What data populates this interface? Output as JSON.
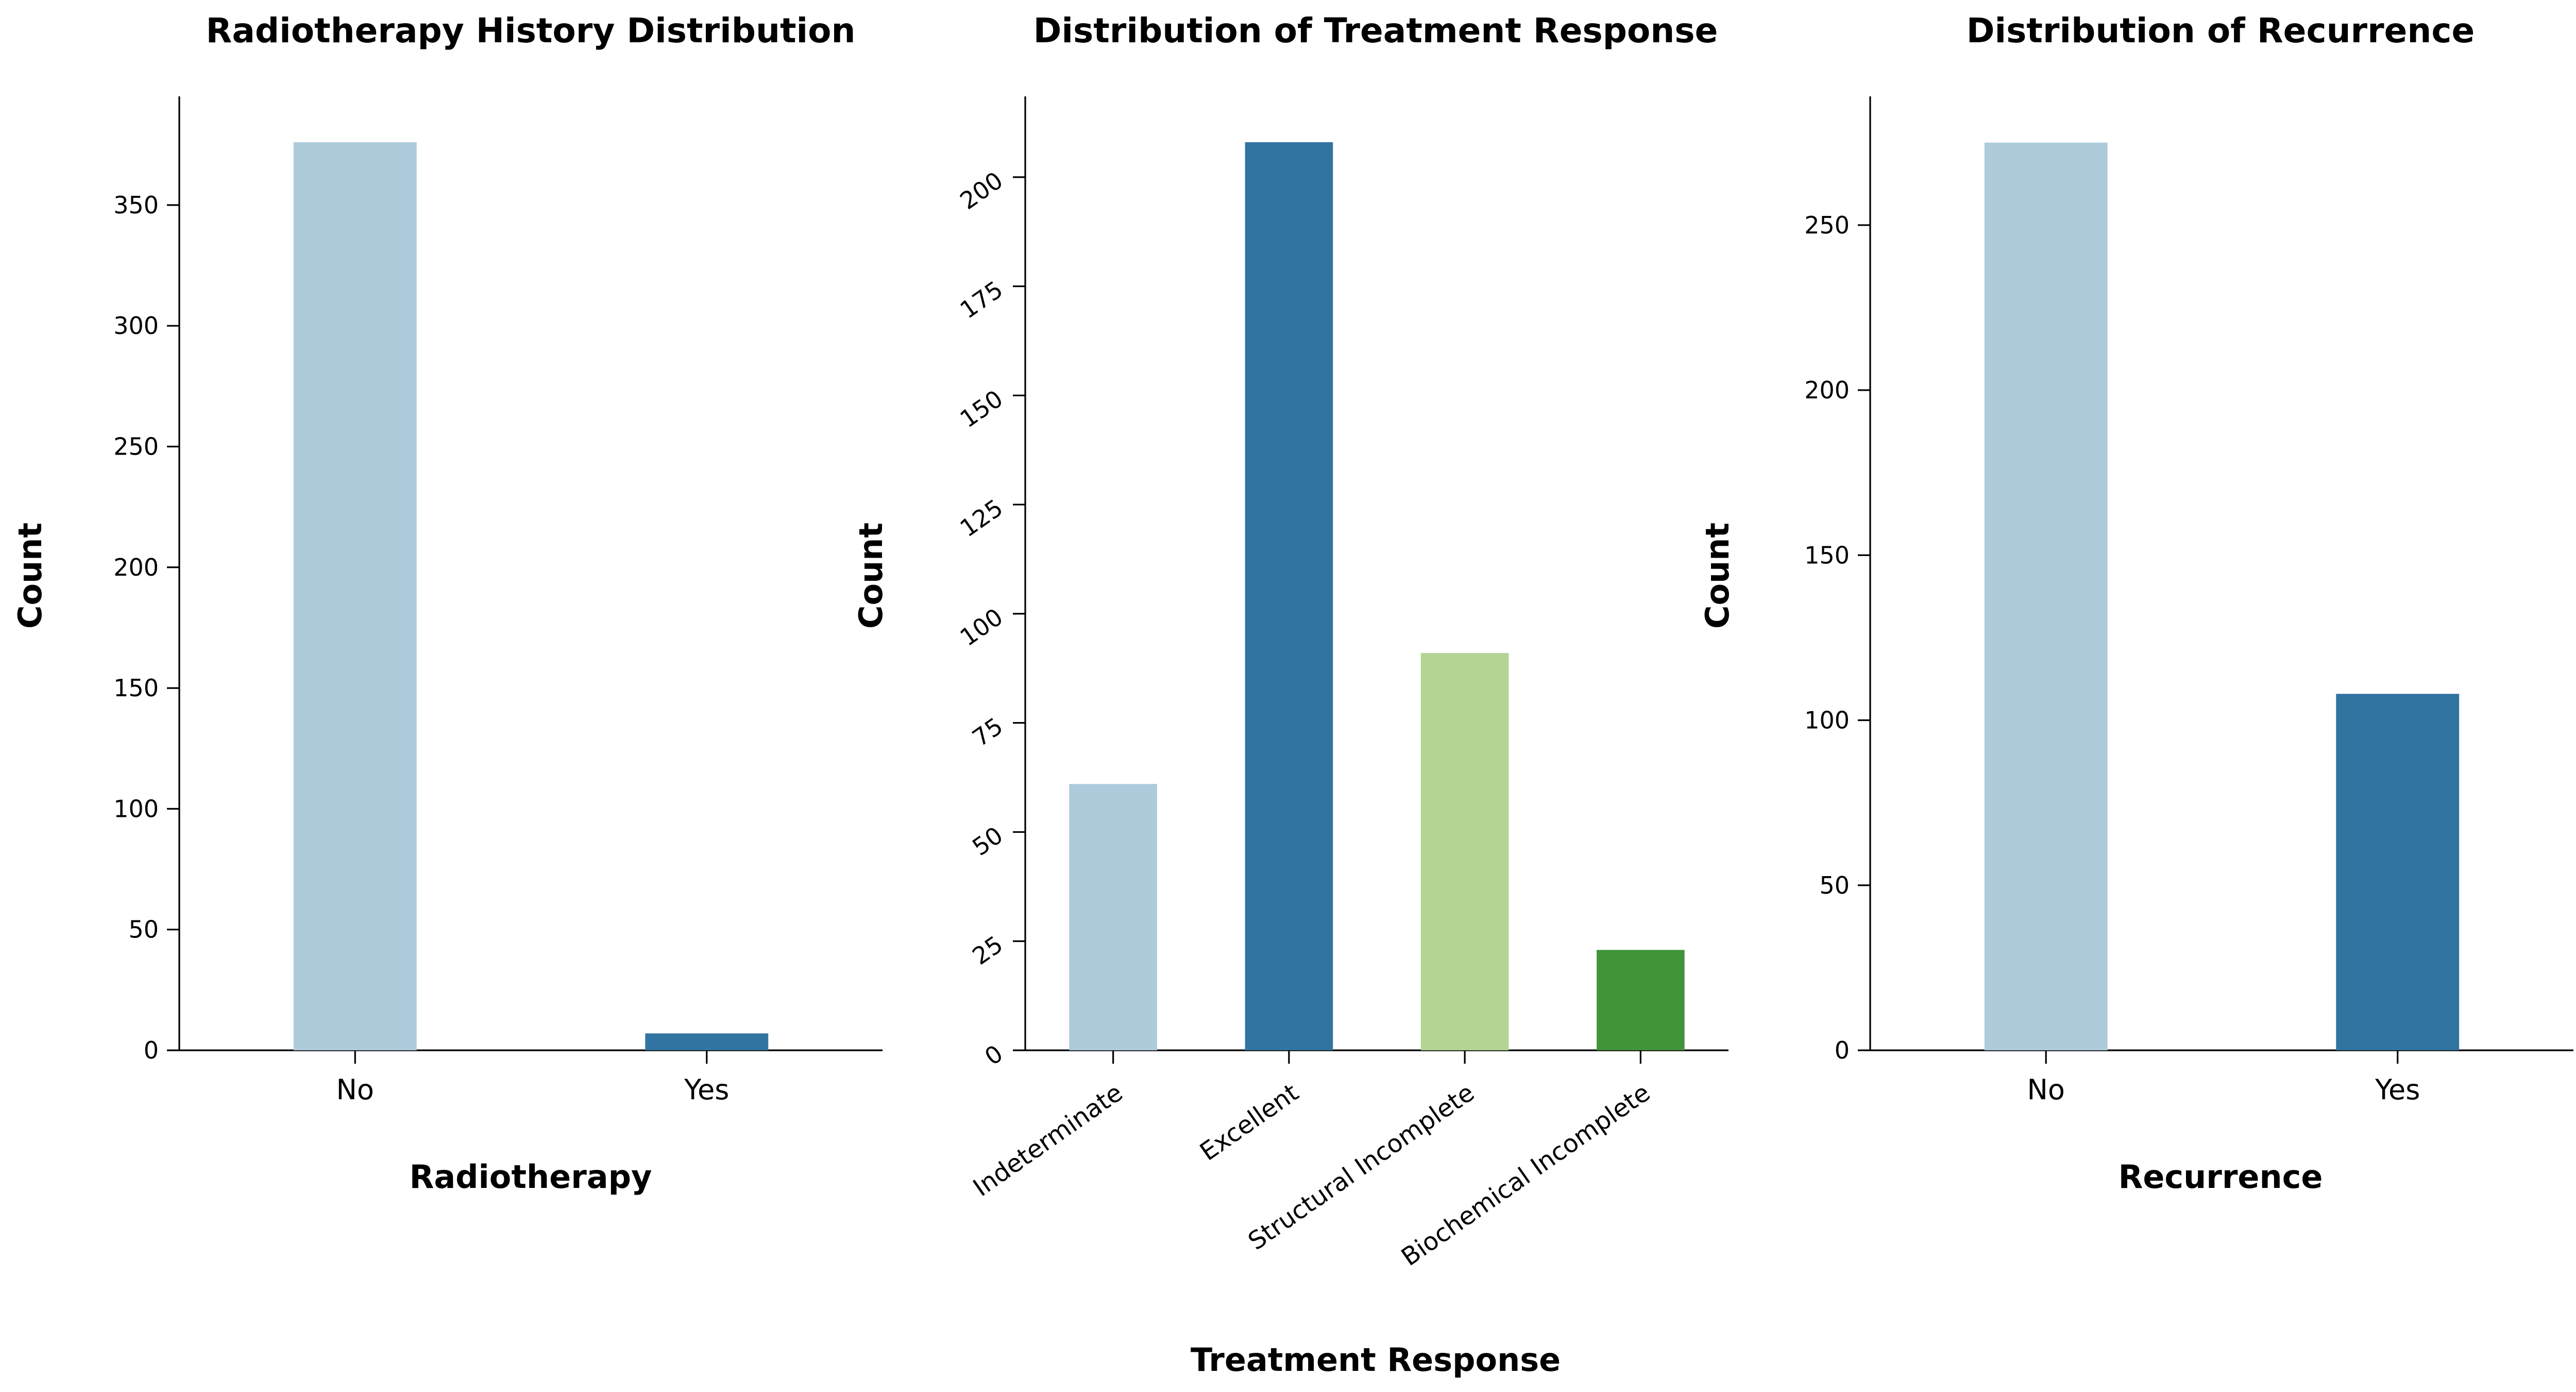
{
  "chart_data": [
    {
      "type": "bar",
      "title": "Radiotherapy History Distribution",
      "xlabel": "Radiotherapy",
      "ylabel": "Count",
      "categories": [
        "No",
        "Yes"
      ],
      "values": [
        376,
        7
      ],
      "colors": [
        "#aecbdc",
        "#3174a1"
      ],
      "ylim": [
        0,
        395
      ],
      "yticks": [
        0,
        50,
        100,
        150,
        200,
        250,
        300,
        350
      ],
      "grid": false,
      "legend": "none"
    },
    {
      "type": "bar",
      "title": "Distribution of Treatment Response",
      "xlabel": "Treatment Response",
      "ylabel": "Count",
      "categories": [
        "Indeterminate",
        "Excellent",
        "Structural Incomplete",
        "Biochemical Incomplete"
      ],
      "values": [
        61,
        208,
        91,
        23
      ],
      "colors": [
        "#aecbdc",
        "#3174a1",
        "#b3d492",
        "#40943a"
      ],
      "ylim": [
        0,
        218.5
      ],
      "yticks": [
        0,
        25,
        50,
        75,
        100,
        125,
        150,
        175,
        200
      ],
      "grid": false,
      "legend": "none"
    },
    {
      "type": "bar",
      "title": "Distribution of Recurrence",
      "xlabel": "Recurrence",
      "ylabel": "Count",
      "categories": [
        "No",
        "Yes"
      ],
      "values": [
        275,
        108
      ],
      "colors": [
        "#aecbdc",
        "#3174a1"
      ],
      "ylim": [
        0,
        289
      ],
      "yticks": [
        0,
        50,
        100,
        150,
        200,
        250
      ],
      "grid": false,
      "legend": "none"
    }
  ]
}
